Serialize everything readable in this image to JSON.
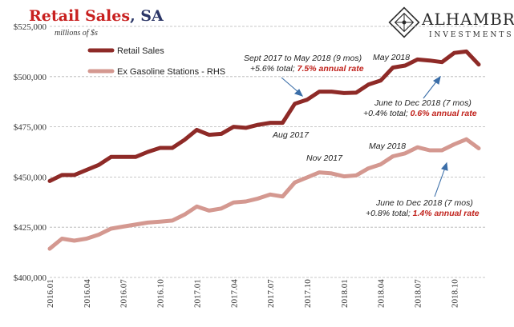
{
  "header": {
    "title_main": "Retail Sales",
    "title_suffix": ", SA"
  },
  "logo": {
    "name": "ALHAMBRA",
    "sub": "INVESTMENTS"
  },
  "chart_data": {
    "type": "line",
    "units_label": "millions of $s",
    "y_left": {
      "min": 400000,
      "max": 525000,
      "ticks": [
        "$400,000",
        "$425,000",
        "$450,000",
        "$475,000",
        "$500,000",
        "$525,000"
      ],
      "tick_values": [
        400000,
        425000,
        450000,
        475000,
        500000,
        525000
      ]
    },
    "y_right": {
      "min": 345000,
      "max": 470000
    },
    "grid": "horizontal dashed",
    "legend_position": "top-left",
    "x_tick_labels": [
      "2016.01",
      "2016.04",
      "2016.07",
      "2016.10",
      "2017.01",
      "2017.04",
      "2017.07",
      "2017.10",
      "2018.01",
      "2018.04",
      "2018.07",
      "2018.10"
    ],
    "x_tick_index": [
      0,
      3,
      6,
      9,
      12,
      15,
      18,
      21,
      24,
      27,
      30,
      33
    ],
    "x": [
      "2016.01",
      "2016.02",
      "2016.03",
      "2016.04",
      "2016.05",
      "2016.06",
      "2016.07",
      "2016.08",
      "2016.09",
      "2016.10",
      "2016.11",
      "2016.12",
      "2017.01",
      "2017.02",
      "2017.03",
      "2017.04",
      "2017.05",
      "2017.06",
      "2017.07",
      "2017.08",
      "2017.09",
      "2017.10",
      "2017.11",
      "2017.12",
      "2018.01",
      "2018.02",
      "2018.03",
      "2018.04",
      "2018.05",
      "2018.06",
      "2018.07",
      "2018.08",
      "2018.09",
      "2018.10",
      "2018.11",
      "2018.12"
    ],
    "series": [
      {
        "name": "Retail Sales",
        "axis": "left",
        "color": "#8e2a27",
        "values": [
          448000,
          451000,
          451000,
          453500,
          456000,
          460000,
          460000,
          460000,
          462500,
          464500,
          464500,
          468500,
          473500,
          471000,
          471500,
          475000,
          474500,
          476000,
          477000,
          477000,
          486500,
          488500,
          492500,
          492500,
          491800,
          492000,
          496000,
          498000,
          504500,
          505500,
          508500,
          508000,
          507200,
          511800,
          512500,
          506000
        ]
      },
      {
        "name": "Ex Gasoline Stations - RHS",
        "axis": "right",
        "color": "#d49890",
        "values": [
          359300,
          364300,
          363300,
          364300,
          366300,
          369300,
          370300,
          371300,
          372300,
          372800,
          373300,
          376300,
          380300,
          378300,
          379300,
          382300,
          382800,
          384300,
          386300,
          385300,
          392300,
          394800,
          397300,
          396800,
          395300,
          395800,
          399300,
          401300,
          405300,
          406800,
          409800,
          408300,
          408300,
          411300,
          413800,
          409300
        ]
      }
    ],
    "annotations": [
      {
        "id": "sept-may",
        "lines": [
          "Sept 2017 to May 2018 (9 mos)",
          "+5.6% total; ",
          "7.5% annual  rate"
        ]
      },
      {
        "id": "may-top",
        "text": "May 2018"
      },
      {
        "id": "aug",
        "text": "Aug 2017"
      },
      {
        "id": "june-top",
        "lines": [
          "June to Dec 2018 (7 mos)",
          "+0.4% total; ",
          "0.6% annual  rate"
        ]
      },
      {
        "id": "nov",
        "text": "Nov 2017"
      },
      {
        "id": "may-bottom",
        "text": "May 2018"
      },
      {
        "id": "june-bottom",
        "lines": [
          "June to Dec 2018 (7 mos)",
          "+0.8% total; ",
          "1.4% annual  rate"
        ]
      }
    ]
  }
}
